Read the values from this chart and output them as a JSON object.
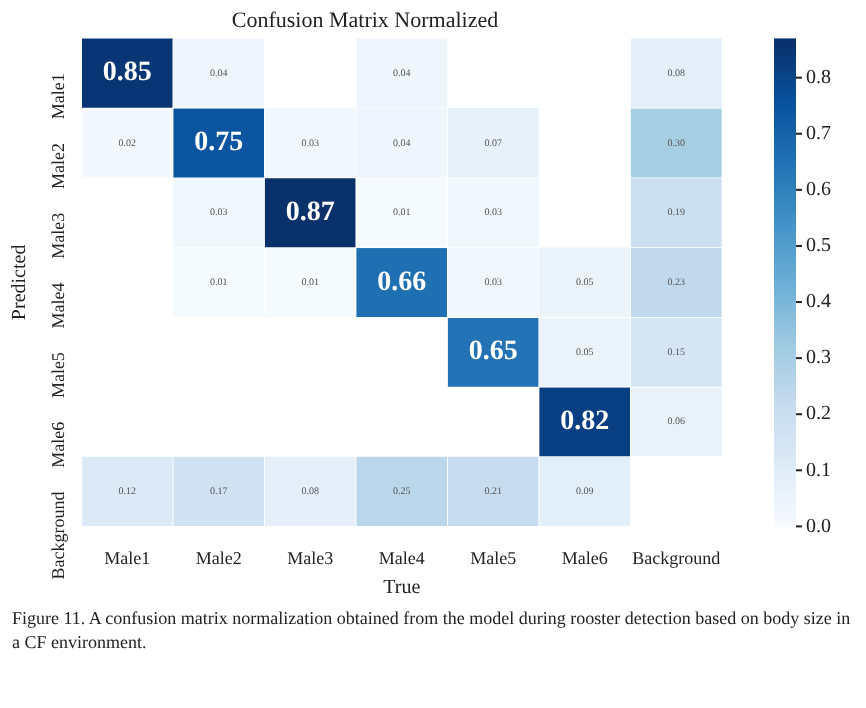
{
  "chart_data": {
    "type": "heatmap",
    "title": "Confusion Matrix Normalized",
    "xlabel": "True",
    "ylabel": "Predicted",
    "categories": [
      "Male1",
      "Male2",
      "Male3",
      "Male4",
      "Male5",
      "Male6",
      "Background"
    ],
    "y_categories": [
      "Male1",
      "Male2",
      "Male3",
      "Male4",
      "Male5",
      "Male6",
      "Background"
    ],
    "cells": [
      [
        0.85,
        0.04,
        null,
        0.04,
        null,
        null,
        0.08
      ],
      [
        0.02,
        0.75,
        0.03,
        0.04,
        0.07,
        null,
        0.3
      ],
      [
        null,
        0.03,
        0.87,
        0.01,
        0.03,
        null,
        0.19
      ],
      [
        null,
        0.01,
        0.01,
        0.66,
        0.03,
        0.05,
        0.23
      ],
      [
        null,
        null,
        null,
        null,
        0.65,
        0.05,
        0.15
      ],
      [
        null,
        null,
        null,
        null,
        null,
        0.82,
        0.06
      ],
      [
        0.12,
        0.17,
        0.08,
        0.25,
        0.21,
        0.09,
        null
      ]
    ],
    "cell_labels": [
      [
        "0.85",
        "0.04",
        null,
        "0.04",
        null,
        null,
        "0.08"
      ],
      [
        "0.02",
        "0.75",
        "0.03",
        "0.04",
        "0.07",
        null,
        "0.30"
      ],
      [
        null,
        "0.03",
        "0.87",
        "0.01",
        "0.03",
        null,
        "0.19"
      ],
      [
        null,
        "0.01",
        "0.01",
        "0.66",
        "0.03",
        "0.05",
        "0.23"
      ],
      [
        null,
        null,
        null,
        null,
        "0.65",
        "0.05",
        "0.15"
      ],
      [
        null,
        null,
        null,
        null,
        null,
        "0.82",
        "0.06"
      ],
      [
        "0.12",
        "0.17",
        "0.08",
        "0.25",
        "0.21",
        "0.09",
        null
      ]
    ],
    "data_labels": true,
    "clim": [
      0,
      0.87
    ],
    "cticks": [
      {
        "value": 0,
        "label": "0.0"
      },
      {
        "value": 0.1,
        "label": "0.1"
      },
      {
        "value": 0.2,
        "label": "0.2"
      },
      {
        "value": 0.3,
        "label": "0.3"
      },
      {
        "value": 0.4,
        "label": "0.4"
      },
      {
        "value": 0.5,
        "label": "0.5"
      },
      {
        "value": 0.6,
        "label": "0.6"
      },
      {
        "value": 0.7,
        "label": "0.7"
      },
      {
        "value": 0.8,
        "label": "0.8"
      }
    ],
    "annotations": [
      "Figure 11. A confusion matrix normalization obtained from the model during rooster detection based on body size in a CF environment."
    ]
  }
}
